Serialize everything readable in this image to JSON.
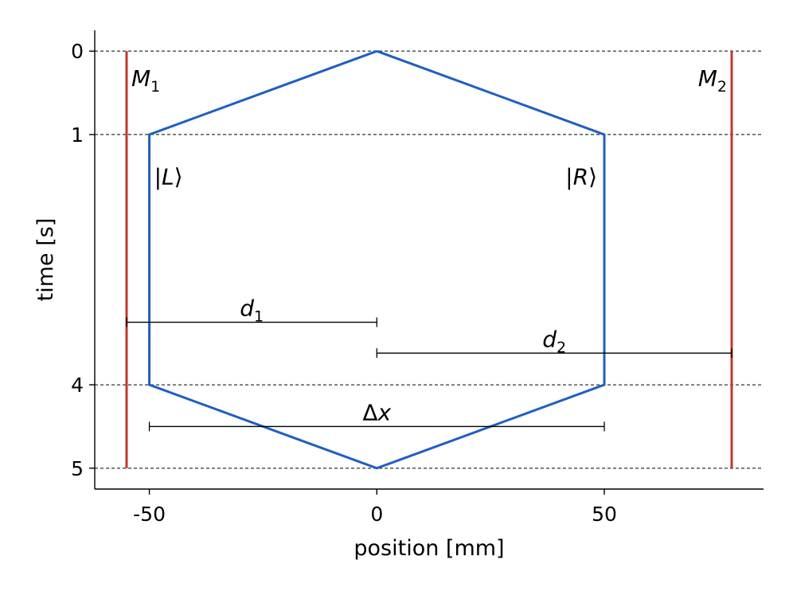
{
  "chart_data": {
    "type": "line",
    "xlabel": "position [mm]",
    "ylabel": "time [s]",
    "xlim": [
      -62,
      85
    ],
    "ylim": [
      5.25,
      -0.25
    ],
    "x_ticks": [
      -50,
      0,
      50
    ],
    "y_ticks": [
      0,
      1,
      4,
      5
    ],
    "grid": "horizontal dashed lines at y ticks",
    "colors": {
      "path": "#1f5fbf",
      "mirror": "#c0392b",
      "axis": "#000000",
      "guide": "#000000"
    },
    "series": [
      {
        "role": "interferometer-path",
        "x": [
          0,
          50,
          50,
          0,
          -50,
          -50,
          0
        ],
        "y": [
          0,
          1,
          4,
          5,
          4,
          1,
          0
        ]
      }
    ],
    "mirrors": [
      {
        "label_main": "M",
        "label_sub": "1",
        "x": -55,
        "y": [
          0,
          5
        ]
      },
      {
        "label_main": "M",
        "label_sub": "2",
        "x": 78,
        "y": [
          0,
          5
        ]
      }
    ],
    "state_labels": [
      {
        "pre": "|",
        "main": "L",
        "post": "⟩",
        "x": -50,
        "y": 1.6
      },
      {
        "pre": "|",
        "main": "R",
        "post": "⟩",
        "x": 50,
        "y": 1.6
      }
    ],
    "intervals": [
      {
        "label_main": "d",
        "label_sub": "1",
        "x": [
          -55,
          0
        ],
        "y": 3.25
      },
      {
        "label_main": "d",
        "label_sub": "2",
        "x": [
          0,
          78
        ],
        "y": 3.62
      },
      {
        "label_main": "Δ",
        "label_italic": "x",
        "x": [
          -50,
          50
        ],
        "y": 4.5
      }
    ]
  }
}
